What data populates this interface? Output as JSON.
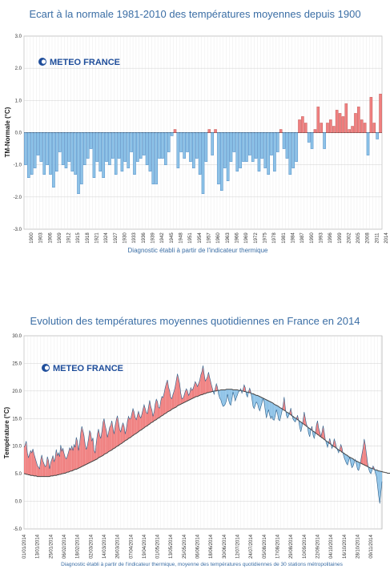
{
  "chart1": {
    "title": "Ecart à la normale 1981-2010 des températures moyennes depuis 1900",
    "ylabel": "TM-Normale (°C)",
    "note": "Diagnostic établi à partir de l'indicateur thermique",
    "logo": "METEO FRANCE",
    "y_ticks": [
      "3.0",
      "2.0",
      "1.0",
      "0.0",
      "-1.0",
      "-2.0",
      "-3.0"
    ],
    "x_ticks": [
      "1900",
      "1903",
      "1906",
      "1909",
      "1912",
      "1915",
      "1918",
      "1921",
      "1924",
      "1927",
      "1930",
      "1933",
      "1936",
      "1939",
      "1942",
      "1945",
      "1948",
      "1951",
      "1954",
      "1957",
      "1960",
      "1963",
      "1966",
      "1969",
      "1972",
      "1975",
      "1978",
      "1981",
      "1984",
      "1987",
      "1990",
      "1993",
      "1996",
      "1999",
      "2002",
      "2005",
      "2008",
      "2011",
      "2014"
    ]
  },
  "chart2": {
    "title": "Evolution des températures moyennes quotidiennes en France en 2014",
    "ylabel": "Température (°C)",
    "note": "Diagnostic établi à partir de l'indicateur thermique, moyenne des températures quotidiennes de 30 stations métropolitaines",
    "logo": "METEO FRANCE",
    "y_ticks": [
      "30.0",
      "25.0",
      "20.0",
      "15.0",
      "10.0",
      "5.0",
      "0.0",
      "-5.0"
    ],
    "x_ticks": [
      "01/01/2014",
      "13/01/2014",
      "25/01/2014",
      "06/02/2014",
      "18/02/2014",
      "02/03/2014",
      "14/03/2014",
      "26/03/2014",
      "07/04/2014",
      "19/04/2014",
      "01/05/2014",
      "13/05/2014",
      "25/05/2014",
      "06/06/2014",
      "18/06/2014",
      "30/06/2014",
      "12/07/2014",
      "24/07/2014",
      "05/08/2014",
      "17/08/2014",
      "29/08/2014",
      "10/09/2014",
      "22/09/2014",
      "04/10/2014",
      "16/10/2014",
      "28/10/2014",
      "09/11/2014",
      "21/11/2014",
      "03/12/2014",
      "15/12/2014",
      "27/12/2014"
    ]
  },
  "colors": {
    "title": "#3b6ea5",
    "warm": "#f08080",
    "cold": "#8ec3e8",
    "warm_stroke": "#c0504d",
    "cold_stroke": "#3a7fc1",
    "normal_line": "#444444"
  },
  "chart_data": [
    {
      "type": "bar",
      "title": "Ecart à la normale 1981-2010 des températures moyennes depuis 1900",
      "xlabel": "",
      "ylabel": "TM-Normale (°C)",
      "ylim": [
        -3,
        3
      ],
      "grid": true,
      "categories": [
        "1900",
        "1901",
        "1902",
        "1903",
        "1904",
        "1905",
        "1906",
        "1907",
        "1908",
        "1909",
        "1910",
        "1911",
        "1912",
        "1913",
        "1914",
        "1915",
        "1916",
        "1917",
        "1918",
        "1919",
        "1920",
        "1921",
        "1922",
        "1923",
        "1924",
        "1925",
        "1926",
        "1927",
        "1928",
        "1929",
        "1930",
        "1931",
        "1932",
        "1933",
        "1934",
        "1935",
        "1936",
        "1937",
        "1938",
        "1939",
        "1940",
        "1941",
        "1942",
        "1943",
        "1944",
        "1945",
        "1946",
        "1947",
        "1948",
        "1949",
        "1950",
        "1951",
        "1952",
        "1953",
        "1954",
        "1955",
        "1956",
        "1957",
        "1958",
        "1959",
        "1960",
        "1961",
        "1962",
        "1963",
        "1964",
        "1965",
        "1966",
        "1967",
        "1968",
        "1969",
        "1970",
        "1971",
        "1972",
        "1973",
        "1974",
        "1975",
        "1976",
        "1977",
        "1978",
        "1979",
        "1980",
        "1981",
        "1982",
        "1983",
        "1984",
        "1985",
        "1986",
        "1987",
        "1988",
        "1989",
        "1990",
        "1991",
        "1992",
        "1993",
        "1994",
        "1995",
        "1996",
        "1997",
        "1998",
        "1999",
        "2000",
        "2001",
        "2002",
        "2003",
        "2004",
        "2005",
        "2006",
        "2007",
        "2008",
        "2009",
        "2010",
        "2011",
        "2012",
        "2013",
        "2014"
      ],
      "values": [
        -1.0,
        -1.4,
        -1.3,
        -1.1,
        -0.7,
        -0.9,
        -1.3,
        -1.0,
        -1.3,
        -1.7,
        -1.2,
        -0.6,
        -1.0,
        -1.1,
        -0.9,
        -1.2,
        -1.3,
        -1.9,
        -1.6,
        -1.0,
        -0.8,
        -0.5,
        -1.4,
        -0.9,
        -1.2,
        -1.4,
        -0.9,
        -1.0,
        -0.8,
        -1.3,
        -0.8,
        -1.2,
        -0.9,
        -1.1,
        -0.6,
        -1.3,
        -0.9,
        -0.8,
        -0.7,
        -1.0,
        -1.2,
        -1.6,
        -1.6,
        -0.8,
        -0.8,
        -1.0,
        -0.6,
        -0.1,
        0.1,
        -1.1,
        -0.6,
        -0.8,
        -0.6,
        -0.9,
        -1.1,
        -0.8,
        -1.3,
        -1.9,
        -0.9,
        0.1,
        -0.7,
        0.1,
        -1.6,
        -1.8,
        -1.1,
        -1.5,
        -0.9,
        -0.6,
        -1.2,
        -1.1,
        -0.9,
        -0.9,
        -0.7,
        -0.9,
        -0.8,
        -1.2,
        -0.8,
        -1.1,
        -1.3,
        -0.7,
        -1.2,
        -0.6,
        0.1,
        -0.5,
        -0.8,
        -1.3,
        -1.1,
        -0.9,
        0.4,
        0.5,
        0.3,
        -0.3,
        -0.5,
        0.1,
        0.8,
        0.3,
        -0.5,
        0.3,
        0.4,
        0.2,
        0.7,
        0.6,
        0.5,
        0.9,
        0.1,
        0.2,
        0.6,
        0.8,
        0.4,
        0.3,
        -0.7,
        1.1,
        0.3,
        -0.2,
        1.2
      ]
    },
    {
      "type": "line",
      "title": "Evolution des températures moyennes quotidiennes en France en 2014",
      "xlabel": "",
      "ylabel": "Température (°C)",
      "ylim": [
        -5,
        30
      ],
      "grid": true,
      "x_start": "01/01/2014",
      "x_end": "31/12/2014",
      "series": [
        {
          "name": "",
          "values": [
            9.8,
            10.2,
            10.9,
            8.8,
            7.9,
            8.6,
            9.2,
            8.8,
            9.5,
            8.6,
            7.9,
            7.2,
            6.5,
            6.2,
            5.9,
            7.5,
            8.4,
            7.3,
            6.8,
            6.3,
            6.5,
            8.1,
            7.4,
            5.9,
            7.0,
            7.6,
            8.3,
            7.2,
            7.8,
            9.4,
            8.3,
            8.8,
            8.1,
            10.2,
            9.1,
            9.6,
            8.7,
            8.0,
            7.7,
            8.2,
            8.9,
            9.7,
            9.3,
            10.0,
            9.2,
            10.3,
            9.8,
            11.6,
            10.9,
            9.2,
            10.4,
            12.4,
            13.6,
            12.8,
            11.9,
            10.3,
            9.4,
            10.1,
            11.3,
            12.8,
            12.4,
            10.9,
            11.5,
            9.2,
            8.8,
            10.6,
            12.2,
            13.1,
            12.0,
            11.4,
            12.6,
            14.3,
            15.0,
            13.7,
            12.9,
            11.6,
            12.4,
            13.4,
            13.8,
            14.6,
            13.3,
            12.2,
            13.7,
            14.8,
            15.5,
            14.3,
            13.0,
            12.6,
            13.6,
            14.2,
            13.6,
            12.2,
            13.1,
            14.5,
            15.4,
            14.9,
            15.0,
            15.9,
            16.8,
            16.2,
            15.2,
            14.8,
            15.6,
            16.3,
            15.5,
            15.1,
            15.8,
            16.7,
            17.5,
            16.8,
            16.1,
            15.9,
            17.1,
            18.3,
            17.2,
            16.6,
            15.4,
            16.2,
            17.6,
            18.5,
            18.1,
            17.0,
            16.9,
            18.2,
            19.0,
            18.8,
            19.6,
            20.6,
            21.4,
            22.0,
            20.7,
            20.0,
            18.8,
            18.6,
            19.4,
            20.0,
            20.8,
            22.0,
            23.1,
            22.3,
            21.3,
            19.6,
            18.6,
            18.7,
            19.2,
            19.9,
            20.4,
            20.0,
            19.2,
            19.6,
            20.6,
            20.1,
            20.4,
            21.0,
            21.7,
            21.3,
            20.8,
            21.3,
            21.9,
            22.9,
            23.5,
            24.6,
            23.1,
            21.8,
            22.1,
            22.6,
            23.4,
            22.4,
            21.6,
            20.8,
            20.0,
            19.4,
            20.4,
            21.3,
            20.7,
            19.4,
            18.7,
            18.4,
            17.7,
            17.2,
            17.3,
            17.6,
            18.2,
            19.4,
            18.4,
            17.7,
            17.4,
            18.5,
            19.8,
            19.1,
            18.2,
            18.8,
            19.3,
            19.9,
            20.0,
            20.4,
            19.6,
            20.3,
            21.1,
            20.6,
            19.3,
            18.9,
            19.9,
            20.5,
            19.8,
            18.6,
            17.2,
            16.8,
            17.4,
            18.0,
            17.7,
            16.9,
            16.4,
            17.1,
            17.8,
            18.6,
            18.0,
            16.5,
            15.1,
            15.9,
            16.6,
            15.6,
            15.0,
            15.4,
            14.8,
            14.7,
            15.5,
            16.6,
            15.9,
            14.8,
            14.6,
            15.4,
            16.3,
            17.4,
            18.9,
            17.0,
            15.6,
            15.1,
            15.5,
            16.1,
            16.9,
            15.7,
            14.9,
            14.6,
            14.4,
            14.9,
            15.6,
            14.7,
            13.4,
            12.6,
            13.5,
            14.7,
            16.2,
            15.1,
            14.0,
            13.5,
            12.3,
            11.7,
            12.9,
            13.6,
            12.0,
            11.4,
            12.3,
            13.8,
            14.6,
            13.3,
            12.6,
            11.8,
            12.5,
            13.7,
            12.6,
            11.2,
            10.5,
            9.8,
            10.6,
            11.4,
            10.5,
            9.6,
            10.2,
            11.3,
            10.7,
            9.8,
            9.3,
            8.8,
            9.5,
            10.3,
            9.7,
            8.6,
            7.9,
            7.4,
            6.9,
            6.6,
            7.3,
            8.0,
            6.8,
            6.1,
            6.4,
            7.0,
            7.6,
            6.7,
            5.8,
            5.6,
            6.3,
            7.5,
            8.6,
            9.7,
            11.3,
            10.2,
            8.6,
            7.0,
            5.9,
            5.3,
            5.0,
            5.6,
            6.4,
            6.0,
            5.2,
            4.5,
            2.8,
            1.0,
            -0.4,
            1.6,
            3.6
          ]
        },
        {
          "name": "",
          "values": [
            5.0,
            5.0,
            4.9,
            4.9,
            4.8,
            4.8,
            4.7,
            4.7,
            4.7,
            4.6,
            4.6,
            4.6,
            4.5,
            4.5,
            4.5,
            4.5,
            4.5,
            4.5,
            4.5,
            4.5,
            4.5,
            4.5,
            4.5,
            4.5,
            4.6,
            4.6,
            4.6,
            4.7,
            4.7,
            4.7,
            4.8,
            4.8,
            4.9,
            4.9,
            5.0,
            5.0,
            5.1,
            5.1,
            5.2,
            5.3,
            5.3,
            5.4,
            5.5,
            5.5,
            5.6,
            5.7,
            5.8,
            5.8,
            5.9,
            6.0,
            6.1,
            6.2,
            6.3,
            6.4,
            6.5,
            6.6,
            6.7,
            6.8,
            6.9,
            7.0,
            7.1,
            7.2,
            7.3,
            7.4,
            7.5,
            7.6,
            7.7,
            7.9,
            8.0,
            8.1,
            8.2,
            8.3,
            8.5,
            8.6,
            8.7,
            8.8,
            9.0,
            9.1,
            9.2,
            9.3,
            9.5,
            9.6,
            9.7,
            9.9,
            10.0,
            10.1,
            10.3,
            10.4,
            10.5,
            10.7,
            10.8,
            11.0,
            11.1,
            11.2,
            11.4,
            11.5,
            11.6,
            11.8,
            11.9,
            12.1,
            12.2,
            12.3,
            12.5,
            12.6,
            12.8,
            12.9,
            13.0,
            13.2,
            13.3,
            13.5,
            13.6,
            13.7,
            13.9,
            14.0,
            14.2,
            14.3,
            14.4,
            14.6,
            14.7,
            14.8,
            15.0,
            15.1,
            15.2,
            15.4,
            15.5,
            15.6,
            15.8,
            15.9,
            16.0,
            16.2,
            16.3,
            16.4,
            16.5,
            16.7,
            16.8,
            16.9,
            17.0,
            17.1,
            17.3,
            17.4,
            17.5,
            17.6,
            17.7,
            17.8,
            17.9,
            18.0,
            18.1,
            18.2,
            18.3,
            18.4,
            18.5,
            18.6,
            18.7,
            18.8,
            18.9,
            19.0,
            19.0,
            19.1,
            19.2,
            19.3,
            19.3,
            19.4,
            19.5,
            19.5,
            19.6,
            19.7,
            19.7,
            19.8,
            19.8,
            19.9,
            19.9,
            20.0,
            20.0,
            20.0,
            20.1,
            20.1,
            20.1,
            20.2,
            20.2,
            20.2,
            20.2,
            20.2,
            20.3,
            20.3,
            20.3,
            20.3,
            20.3,
            20.3,
            20.2,
            20.2,
            20.2,
            20.2,
            20.2,
            20.1,
            20.1,
            20.1,
            20.0,
            20.0,
            19.9,
            19.9,
            19.8,
            19.8,
            19.7,
            19.7,
            19.6,
            19.5,
            19.5,
            19.4,
            19.3,
            19.2,
            19.2,
            19.1,
            19.0,
            18.9,
            18.8,
            18.7,
            18.6,
            18.5,
            18.4,
            18.3,
            18.2,
            18.1,
            18.0,
            17.9,
            17.8,
            17.6,
            17.5,
            17.4,
            17.3,
            17.2,
            17.0,
            16.9,
            16.8,
            16.6,
            16.5,
            16.4,
            16.2,
            16.1,
            16.0,
            15.8,
            15.7,
            15.5,
            15.4,
            15.2,
            15.1,
            15.0,
            14.8,
            14.7,
            14.5,
            14.4,
            14.2,
            14.1,
            13.9,
            13.8,
            13.6,
            13.5,
            13.3,
            13.2,
            13.0,
            12.9,
            12.7,
            12.6,
            12.4,
            12.3,
            12.1,
            12.0,
            11.8,
            11.7,
            11.5,
            11.4,
            11.2,
            11.1,
            10.9,
            10.8,
            10.6,
            10.5,
            10.3,
            10.2,
            10.0,
            9.9,
            9.8,
            9.6,
            9.5,
            9.3,
            9.2,
            9.1,
            8.9,
            8.8,
            8.7,
            8.5,
            8.4,
            8.3,
            8.1,
            8.0,
            7.9,
            7.8,
            7.7,
            7.5,
            7.4,
            7.3,
            7.2,
            7.1,
            7.0,
            6.9,
            6.8,
            6.7,
            6.6,
            6.5,
            6.4,
            6.3,
            6.2,
            6.1,
            6.0,
            6.0,
            5.9,
            5.8,
            5.7,
            5.7,
            5.6,
            5.5,
            5.5,
            5.4,
            5.4,
            5.3,
            5.3,
            5.2,
            5.2,
            5.1,
            5.1,
            5.1,
            5.0,
            5.0,
            5.0,
            5.0,
            5.0,
            5.0,
            5.0,
            5.0,
            5.0,
            5.0,
            5.0,
            5.0
          ]
        }
      ]
    }
  ]
}
